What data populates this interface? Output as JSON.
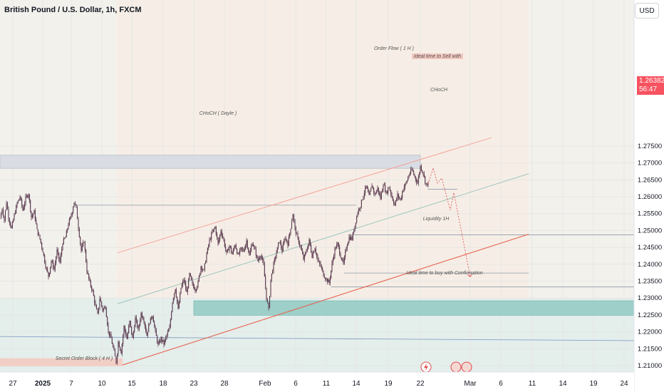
{
  "header": {
    "symbol_title": "British Pound / U.S. Dollar, 1h, FXCM",
    "currency": "USD"
  },
  "price_tag": {
    "price": "1.26382",
    "countdown": "56:47"
  },
  "colors": {
    "candle": "#5b3a4f",
    "channel_upper": "#f4a39a",
    "channel_lower": "#e8604c",
    "channel_mid": "#9fc6be",
    "projection": "#e25b5b",
    "buy_zone": "#9ecfc9",
    "price_tag": "#f7525f"
  },
  "annotations": {
    "order_flow": "Order Flow ( 1 H )",
    "sell_zone": "Ideal time to Sell with",
    "choch_small": "CHoCH",
    "choch_daily": "CHoCH ( Dayle )",
    "liquidity": "Liquidity 1H",
    "buy_zone": "Ideal time to buy with Confirmation",
    "order_block": "Secret Order Block ( 4 H )"
  },
  "chart_data": {
    "type": "candlestick",
    "title": "British Pound / U.S. Dollar, 1h, FXCM",
    "ylim": [
      1.2085,
      1.2775
    ],
    "y_ticks": [
      "1.27500",
      "1.27000",
      "1.26500",
      "1.26000",
      "1.25500",
      "1.25000",
      "1.24500",
      "1.24000",
      "1.23500",
      "1.23000",
      "1.22500",
      "1.22000",
      "1.21500",
      "1.21000"
    ],
    "x_tick_labels": [
      "27",
      "2025",
      "7",
      "10",
      "15",
      "18",
      "23",
      "28",
      "Feb",
      "6",
      "11",
      "14",
      "19",
      "22",
      "Mar",
      "6",
      "11",
      "14",
      "19",
      "24"
    ],
    "last_price": 1.26382,
    "price_path": [
      [
        0,
        1.2535
      ],
      [
        3,
        1.2565
      ],
      [
        6,
        1.253
      ],
      [
        9,
        1.2585
      ],
      [
        12,
        1.254
      ],
      [
        16,
        1.2505
      ],
      [
        20,
        1.2545
      ],
      [
        24,
        1.258
      ],
      [
        28,
        1.26
      ],
      [
        32,
        1.256
      ],
      [
        36,
        1.2595
      ],
      [
        40,
        1.261
      ],
      [
        44,
        1.254
      ],
      [
        48,
        1.2555
      ],
      [
        52,
        1.25
      ],
      [
        56,
        1.2475
      ],
      [
        60,
        1.244
      ],
      [
        64,
        1.2395
      ],
      [
        68,
        1.2365
      ],
      [
        72,
        1.241
      ],
      [
        76,
        1.2385
      ],
      [
        80,
        1.244
      ],
      [
        84,
        1.2405
      ],
      [
        88,
        1.2465
      ],
      [
        92,
        1.248
      ],
      [
        96,
        1.252
      ],
      [
        100,
        1.2545
      ],
      [
        104,
        1.2585
      ],
      [
        107,
        1.2565
      ],
      [
        110,
        1.251
      ],
      [
        114,
        1.244
      ],
      [
        118,
        1.247
      ],
      [
        122,
        1.238
      ],
      [
        126,
        1.2345
      ],
      [
        130,
        1.232
      ],
      [
        134,
        1.2275
      ],
      [
        137,
        1.225
      ],
      [
        140,
        1.23
      ],
      [
        144,
        1.2265
      ],
      [
        148,
        1.2275
      ],
      [
        152,
        1.22
      ],
      [
        156,
        1.218
      ],
      [
        160,
        1.214
      ],
      [
        163,
        1.211
      ],
      [
        166,
        1.217
      ],
      [
        170,
        1.214
      ],
      [
        174,
        1.2215
      ],
      [
        178,
        1.218
      ],
      [
        182,
        1.223
      ],
      [
        186,
        1.218
      ],
      [
        190,
        1.224
      ],
      [
        194,
        1.2205
      ],
      [
        198,
        1.2255
      ],
      [
        202,
        1.2235
      ],
      [
        206,
        1.219
      ],
      [
        210,
        1.223
      ],
      [
        214,
        1.225
      ],
      [
        218,
        1.22
      ],
      [
        222,
        1.216
      ],
      [
        226,
        1.218
      ],
      [
        230,
        1.2165
      ],
      [
        234,
        1.219
      ],
      [
        238,
        1.221
      ],
      [
        242,
        1.229
      ],
      [
        246,
        1.233
      ],
      [
        250,
        1.2265
      ],
      [
        254,
        1.233
      ],
      [
        258,
        1.2355
      ],
      [
        262,
        1.2315
      ],
      [
        266,
        1.237
      ],
      [
        270,
        1.234
      ],
      [
        274,
        1.2325
      ],
      [
        278,
        1.2345
      ],
      [
        282,
        1.2395
      ],
      [
        286,
        1.238
      ],
      [
        290,
        1.243
      ],
      [
        294,
        1.247
      ],
      [
        298,
        1.2495
      ],
      [
        302,
        1.251
      ],
      [
        306,
        1.246
      ],
      [
        310,
        1.25
      ],
      [
        314,
        1.247
      ],
      [
        318,
        1.243
      ],
      [
        322,
        1.2455
      ],
      [
        326,
        1.243
      ],
      [
        330,
        1.246
      ],
      [
        334,
        1.2425
      ],
      [
        338,
        1.2445
      ],
      [
        342,
        1.244
      ],
      [
        346,
        1.247
      ],
      [
        350,
        1.2425
      ],
      [
        354,
        1.2465
      ],
      [
        358,
        1.244
      ],
      [
        362,
        1.241
      ],
      [
        366,
        1.243
      ],
      [
        370,
        1.2395
      ],
      [
        374,
        1.23
      ],
      [
        377,
        1.2265
      ],
      [
        380,
        1.2355
      ],
      [
        384,
        1.24
      ],
      [
        388,
        1.2435
      ],
      [
        392,
        1.247
      ],
      [
        396,
        1.244
      ],
      [
        400,
        1.248
      ],
      [
        404,
        1.246
      ],
      [
        408,
        1.251
      ],
      [
        411,
        1.255
      ],
      [
        414,
        1.2505
      ],
      [
        418,
        1.2475
      ],
      [
        422,
        1.245
      ],
      [
        426,
        1.2415
      ],
      [
        430,
        1.244
      ],
      [
        434,
        1.247
      ],
      [
        438,
        1.2425
      ],
      [
        442,
        1.245
      ],
      [
        446,
        1.241
      ],
      [
        450,
        1.2395
      ],
      [
        454,
        1.237
      ],
      [
        458,
        1.2355
      ],
      [
        462,
        1.2345
      ],
      [
        466,
        1.24
      ],
      [
        470,
        1.2445
      ],
      [
        474,
        1.246
      ],
      [
        478,
        1.2425
      ],
      [
        482,
        1.24
      ],
      [
        486,
        1.245
      ],
      [
        490,
        1.248
      ],
      [
        494,
        1.2475
      ],
      [
        498,
        1.2515
      ],
      [
        502,
        1.2555
      ],
      [
        506,
        1.2575
      ],
      [
        510,
        1.2605
      ],
      [
        514,
        1.263
      ],
      [
        518,
        1.26
      ],
      [
        522,
        1.2635
      ],
      [
        526,
        1.2605
      ],
      [
        530,
        1.2625
      ],
      [
        534,
        1.2595
      ],
      [
        538,
        1.264
      ],
      [
        542,
        1.261
      ],
      [
        546,
        1.263
      ],
      [
        550,
        1.26
      ],
      [
        554,
        1.2575
      ],
      [
        558,
        1.2605
      ],
      [
        562,
        1.259
      ],
      [
        566,
        1.2625
      ],
      [
        570,
        1.264
      ],
      [
        574,
        1.2665
      ],
      [
        578,
        1.268
      ],
      [
        582,
        1.266
      ],
      [
        586,
        1.264
      ],
      [
        590,
        1.269
      ],
      [
        594,
        1.267
      ],
      [
        598,
        1.2635
      ],
      [
        601,
        1.2638
      ]
    ],
    "projection_path": [
      [
        601,
        1.2638
      ],
      [
        608,
        1.2685
      ],
      [
        614,
        1.264
      ],
      [
        620,
        1.2655
      ],
      [
        627,
        1.26
      ],
      [
        632,
        1.256
      ],
      [
        637,
        1.2612
      ],
      [
        660,
        1.2363
      ]
    ],
    "channel": {
      "upper": [
        [
          165,
          1.2434
        ],
        [
          690,
          1.2775
        ]
      ],
      "mid": [
        [
          165,
          1.2283
        ],
        [
          742,
          1.2668
        ]
      ],
      "lower": [
        [
          172,
          1.2102
        ],
        [
          742,
          1.2489
        ]
      ]
    },
    "levels": [
      {
        "label": "Order Flow ( 1 H )",
        "from": 1.2723,
        "to": 1.2684,
        "x": [
          0,
          590
        ]
      },
      {
        "label": "CHoCH ( Dayle )",
        "price": 1.2575,
        "x": [
          107,
          500
        ]
      },
      {
        "label": "CHoCH",
        "price": 1.2622,
        "x": [
          600,
          642
        ]
      },
      {
        "label": "Liquidity 1H",
        "price": 1.2374,
        "x": [
          483,
          742
        ]
      },
      {
        "label": "Ideal time to buy with Confirmation",
        "from": 1.2292,
        "to": 1.2249,
        "x": [
          272,
          890
        ]
      },
      {
        "label": "Secret Order Block ( 4 H )",
        "from": 1.2122,
        "to": 1.2098,
        "x": [
          0,
          172
        ]
      }
    ],
    "horizontal_lines": [
      1.2487,
      1.2333,
      1.218
    ],
    "grid": true
  }
}
